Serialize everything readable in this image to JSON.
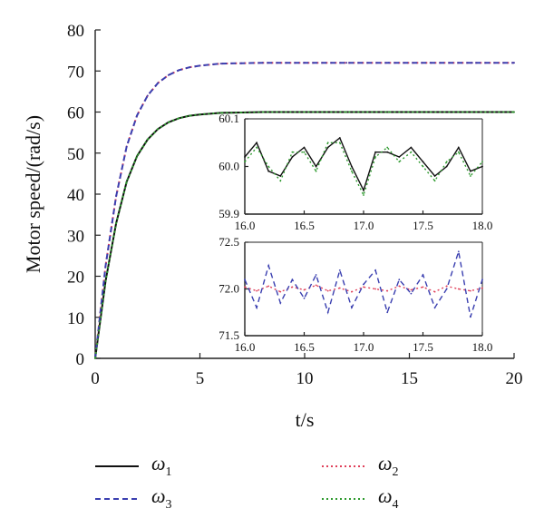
{
  "chart_data": [
    {
      "type": "line",
      "title": "",
      "xlabel": "t/s",
      "ylabel": "Motor speed/(rad/s)",
      "xlim": [
        0,
        20
      ],
      "ylim": [
        0,
        80
      ],
      "xticks": [
        0,
        5,
        10,
        15,
        20
      ],
      "yticks": [
        0,
        10,
        20,
        30,
        40,
        50,
        60,
        70,
        80
      ],
      "grid": false,
      "legend_position": "bottom",
      "series": [
        {
          "name": "ω1",
          "color": "#111111",
          "style": "solid",
          "x": [
            0,
            0.5,
            1,
            1.5,
            2,
            2.5,
            3,
            3.5,
            4,
            4.5,
            5,
            6,
            7,
            8,
            10,
            12,
            14,
            16,
            18,
            20
          ],
          "y": [
            0,
            18.9,
            32.9,
            43.0,
            49.3,
            53.3,
            55.9,
            57.5,
            58.5,
            59.1,
            59.4,
            59.8,
            59.9,
            60.0,
            60.0,
            60.0,
            60.0,
            60.0,
            60.0,
            60.0
          ]
        },
        {
          "name": "ω2",
          "color": "#e0405a",
          "style": "dotted",
          "x": [
            0,
            0.5,
            1,
            1.5,
            2,
            2.5,
            3,
            3.5,
            4,
            4.5,
            5,
            6,
            7,
            8,
            10,
            12,
            14,
            16,
            18,
            20
          ],
          "y": [
            0,
            22.6,
            39.5,
            51.6,
            59.2,
            64.0,
            67.1,
            69.0,
            70.2,
            70.9,
            71.3,
            71.8,
            71.9,
            72.0,
            72.0,
            72.0,
            72.0,
            72.0,
            72.0,
            72.0
          ]
        },
        {
          "name": "ω3",
          "color": "#3a3fb0",
          "style": "dashed",
          "x": [
            0,
            0.5,
            1,
            1.5,
            2,
            2.5,
            3,
            3.5,
            4,
            4.5,
            5,
            6,
            7,
            8,
            10,
            12,
            14,
            16,
            18,
            20
          ],
          "y": [
            0,
            22.6,
            39.5,
            51.6,
            59.2,
            64.0,
            67.1,
            69.0,
            70.2,
            70.9,
            71.3,
            71.8,
            71.9,
            72.0,
            72.0,
            72.0,
            72.0,
            72.0,
            72.0,
            72.0
          ]
        },
        {
          "name": "ω4",
          "color": "#2e9a2e",
          "style": "dotted",
          "x": [
            0,
            0.5,
            1,
            1.5,
            2,
            2.5,
            3,
            3.5,
            4,
            4.5,
            5,
            6,
            7,
            8,
            10,
            12,
            14,
            16,
            18,
            20
          ],
          "y": [
            0,
            18.9,
            32.9,
            43.0,
            49.3,
            53.3,
            55.9,
            57.5,
            58.5,
            59.1,
            59.4,
            59.8,
            59.9,
            60.0,
            60.0,
            60.0,
            60.0,
            60.0,
            60.0,
            60.0
          ]
        }
      ]
    },
    {
      "type": "line",
      "title": "",
      "xlim": [
        16.0,
        18.0
      ],
      "ylim": [
        59.9,
        60.1
      ],
      "xticks": [
        16.0,
        16.5,
        17.0,
        17.5,
        18.0
      ],
      "yticks": [
        59.9,
        60.0,
        60.1
      ],
      "series": [
        {
          "name": "ω1",
          "color": "#111111",
          "style": "solid",
          "x": [
            16.0,
            16.1,
            16.2,
            16.3,
            16.4,
            16.5,
            16.6,
            16.7,
            16.8,
            16.9,
            17.0,
            17.1,
            17.2,
            17.3,
            17.4,
            17.5,
            17.6,
            17.7,
            17.8,
            17.9,
            18.0
          ],
          "y": [
            60.02,
            60.05,
            59.99,
            59.98,
            60.02,
            60.04,
            60.0,
            60.04,
            60.06,
            60.0,
            59.95,
            60.03,
            60.03,
            60.02,
            60.04,
            60.01,
            59.98,
            60.0,
            60.04,
            59.99,
            60.0
          ]
        },
        {
          "name": "ω4",
          "color": "#2e9a2e",
          "style": "dotted",
          "x": [
            16.0,
            16.1,
            16.2,
            16.3,
            16.4,
            16.5,
            16.6,
            16.7,
            16.8,
            16.9,
            17.0,
            17.1,
            17.2,
            17.3,
            17.4,
            17.5,
            17.6,
            17.7,
            17.8,
            17.9,
            18.0
          ],
          "y": [
            60.01,
            60.04,
            60.0,
            59.97,
            60.03,
            60.03,
            59.99,
            60.05,
            60.05,
            59.99,
            59.94,
            60.02,
            60.04,
            60.01,
            60.03,
            60.0,
            59.97,
            60.01,
            60.03,
            59.98,
            60.01
          ]
        }
      ]
    },
    {
      "type": "line",
      "title": "",
      "xlim": [
        16.0,
        18.0
      ],
      "ylim": [
        71.5,
        72.5
      ],
      "xticks": [
        16.0,
        16.5,
        17.0,
        17.5,
        18.0
      ],
      "yticks": [
        71.5,
        72.0,
        72.5
      ],
      "series": [
        {
          "name": "ω2",
          "color": "#e0405a",
          "style": "dotted",
          "x": [
            16.0,
            16.1,
            16.2,
            16.3,
            16.4,
            16.5,
            16.6,
            16.7,
            16.8,
            16.9,
            17.0,
            17.1,
            17.2,
            17.3,
            17.4,
            17.5,
            17.6,
            17.7,
            17.8,
            17.9,
            18.0
          ],
          "y": [
            72.02,
            71.98,
            72.03,
            71.97,
            72.02,
            71.99,
            72.04,
            71.98,
            72.01,
            71.97,
            72.02,
            72.0,
            71.98,
            72.03,
            71.99,
            72.02,
            71.97,
            72.03,
            72.0,
            71.98,
            72.01
          ]
        },
        {
          "name": "ω3",
          "color": "#3a3fb0",
          "style": "dashed",
          "x": [
            16.0,
            16.1,
            16.2,
            16.3,
            16.4,
            16.5,
            16.6,
            16.7,
            16.8,
            16.9,
            17.0,
            17.1,
            17.2,
            17.3,
            17.4,
            17.5,
            17.6,
            17.7,
            17.8,
            17.9,
            18.0
          ],
          "y": [
            72.1,
            71.8,
            72.25,
            71.85,
            72.1,
            71.9,
            72.15,
            71.75,
            72.2,
            71.8,
            72.05,
            72.2,
            71.75,
            72.1,
            71.95,
            72.15,
            71.8,
            72.0,
            72.4,
            71.7,
            72.1
          ]
        }
      ]
    }
  ],
  "legend": [
    {
      "symbol": "ω",
      "sub": "1",
      "series": "ω1",
      "color": "#111111",
      "style": "solid"
    },
    {
      "symbol": "ω",
      "sub": "2",
      "series": "ω2",
      "color": "#e0405a",
      "style": "dotted"
    },
    {
      "symbol": "ω",
      "sub": "3",
      "series": "ω3",
      "color": "#3a3fb0",
      "style": "dashed"
    },
    {
      "symbol": "ω",
      "sub": "4",
      "series": "ω4",
      "color": "#2e9a2e",
      "style": "dotted"
    }
  ]
}
